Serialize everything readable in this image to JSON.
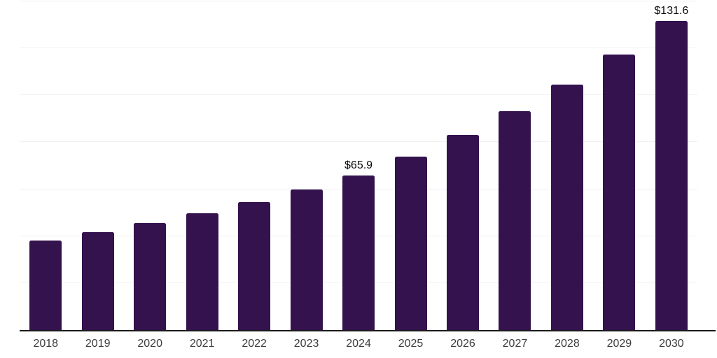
{
  "chart_data": {
    "type": "bar",
    "title": "",
    "xlabel": "",
    "ylabel": "",
    "categories": [
      "2018",
      "2019",
      "2020",
      "2021",
      "2022",
      "2023",
      "2024",
      "2025",
      "2026",
      "2027",
      "2028",
      "2029",
      "2030"
    ],
    "values": [
      38.0,
      41.8,
      45.7,
      49.8,
      54.5,
      60.0,
      65.9,
      73.9,
      83.0,
      93.1,
      104.5,
      117.3,
      131.6
    ],
    "point_labels": [
      "",
      "",
      "",
      "",
      "",
      "",
      "$65.9",
      "",
      "",
      "",
      "",
      "",
      "$131.6"
    ],
    "ylim": [
      0,
      140
    ],
    "grid_interval": 20,
    "grid_visible": true,
    "legend_position": "none",
    "colors": {
      "bar": "#34124e",
      "grid": "#f1f1f3",
      "axis": "#1a1a1a",
      "tick_label": "#3c3c3c",
      "value_label": "#0a0a0a",
      "background": "#ffffff"
    }
  }
}
